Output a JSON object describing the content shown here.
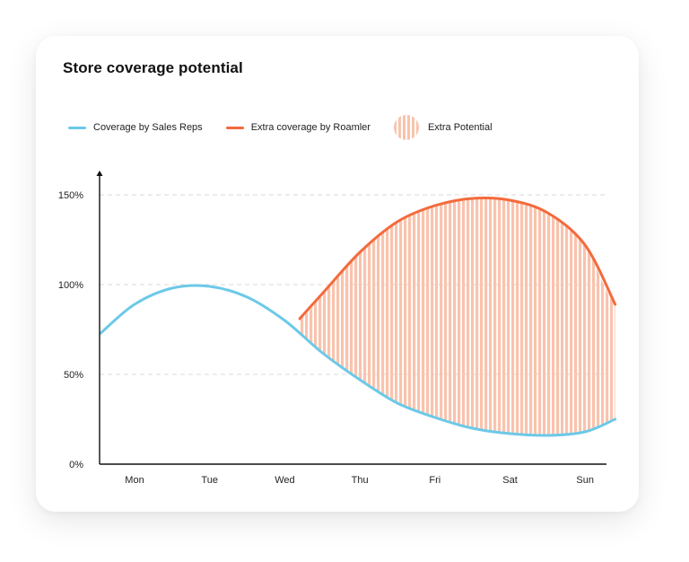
{
  "chart_data": {
    "type": "line",
    "title": "Store coverage potential",
    "categories": [
      "Mon",
      "Tue",
      "Wed",
      "Thu",
      "Fri",
      "Sat",
      "Sun"
    ],
    "y_ticks": [
      "0%",
      "50%",
      "100%",
      "150%"
    ],
    "ylim": [
      0,
      150
    ],
    "grid": true,
    "legend_position": "top-left",
    "series": [
      {
        "name": "Coverage by Sales Reps",
        "color": "#6cc9e8",
        "x": [
          -0.45,
          0,
          0.5,
          1,
          1.5,
          2,
          2.5,
          3,
          3.5,
          4,
          4.5,
          5,
          5.5,
          6,
          6.4
        ],
        "y": [
          73,
          89,
          98,
          99,
          93,
          80,
          62,
          47,
          34,
          26,
          20,
          17,
          16,
          18,
          25
        ]
      },
      {
        "name": "Extra coverage by Roamler",
        "color": "#f36a3c",
        "x": [
          2.2,
          2.5,
          3,
          3.5,
          4,
          4.5,
          5,
          5.5,
          6,
          6.4
        ],
        "y": [
          81,
          95,
          118,
          135,
          144,
          148,
          147,
          140,
          122,
          89
        ]
      },
      {
        "name": "Extra Potential",
        "color": "#f9c3ad",
        "fill_between": [
          "Coverage by Sales Reps",
          "Extra coverage by Roamler"
        ]
      }
    ]
  }
}
